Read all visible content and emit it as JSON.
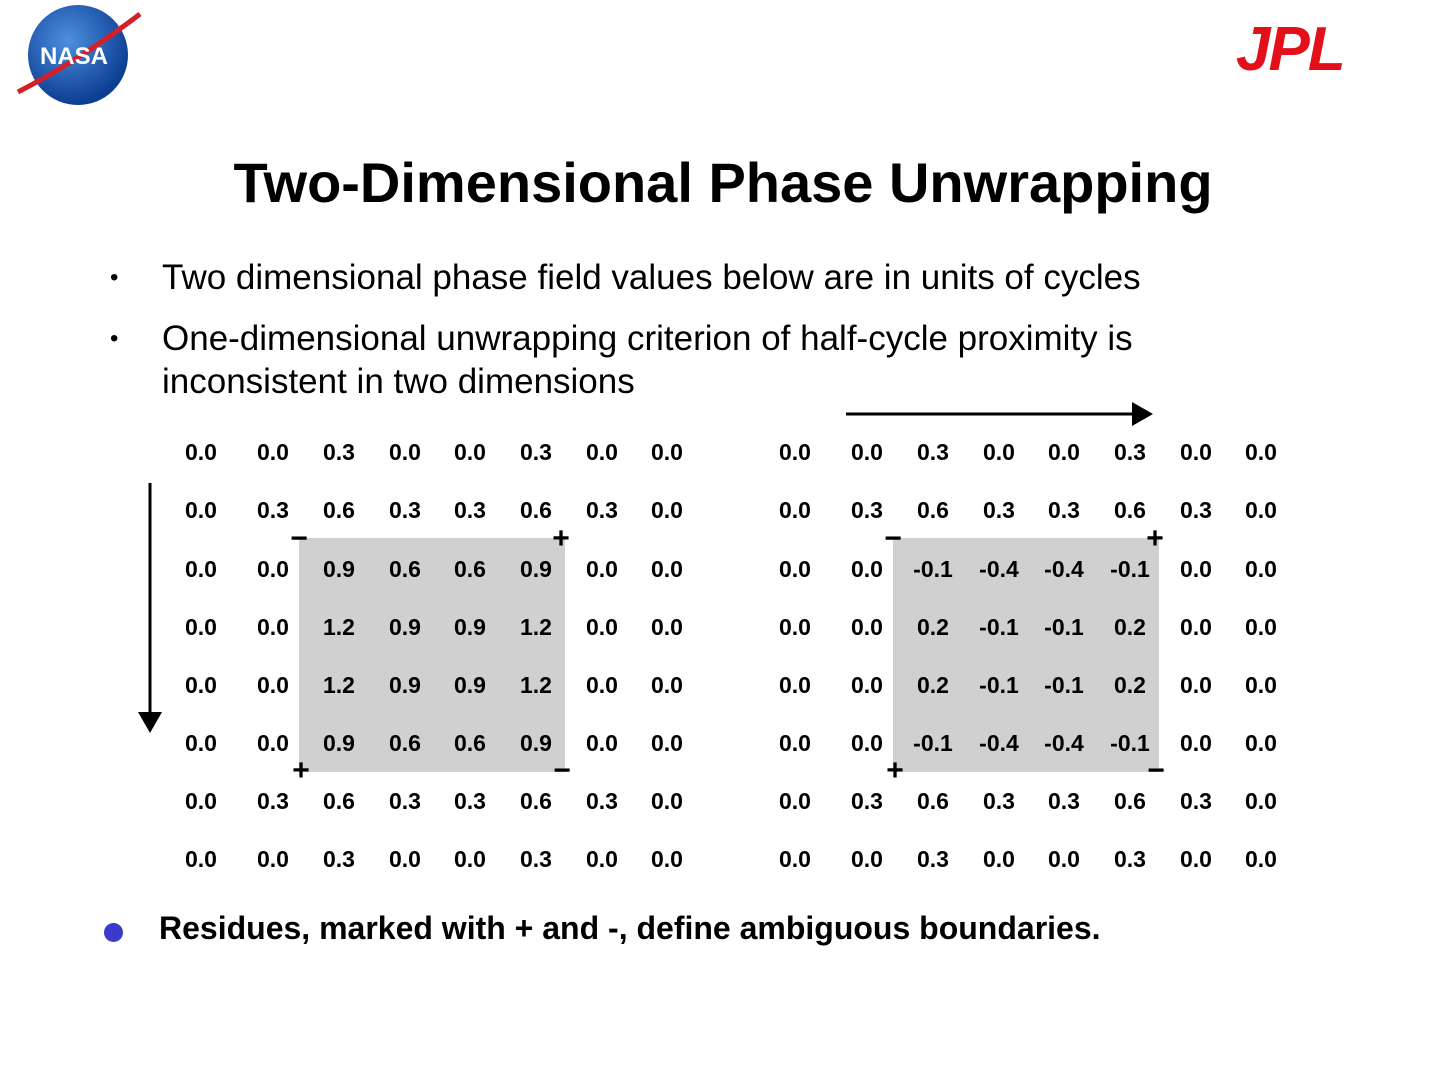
{
  "header": {
    "logos": {
      "nasa": "NASA",
      "jpl": "JPL"
    },
    "title": "Two-Dimensional Phase Unwrapping"
  },
  "bullets": [
    "Two dimensional phase field values below are in units of cycles",
    "One-dimensional unwrapping criterion of half-cycle proximity is inconsistent in two dimensions"
  ],
  "grids": [
    {
      "rows": [
        [
          "0.0",
          "0.0",
          "0.3",
          "0.0",
          "0.0",
          "0.3",
          "0.0",
          "0.0"
        ],
        [
          "0.0",
          "0.3",
          "0.6",
          "0.3",
          "0.3",
          "0.6",
          "0.3",
          "0.0"
        ],
        [
          "0.0",
          "0.0",
          "0.9",
          "0.6",
          "0.6",
          "0.9",
          "0.0",
          "0.0"
        ],
        [
          "0.0",
          "0.0",
          "1.2",
          "0.9",
          "0.9",
          "1.2",
          "0.0",
          "0.0"
        ],
        [
          "0.0",
          "0.0",
          "1.2",
          "0.9",
          "0.9",
          "1.2",
          "0.0",
          "0.0"
        ],
        [
          "0.0",
          "0.0",
          "0.9",
          "0.6",
          "0.6",
          "0.9",
          "0.0",
          "0.0"
        ],
        [
          "0.0",
          "0.3",
          "0.6",
          "0.3",
          "0.3",
          "0.6",
          "0.3",
          "0.0"
        ],
        [
          "0.0",
          "0.0",
          "0.3",
          "0.0",
          "0.0",
          "0.3",
          "0.0",
          "0.0"
        ]
      ],
      "residues": [
        "−",
        "+",
        "+",
        "−"
      ]
    },
    {
      "rows": [
        [
          "0.0",
          "0.0",
          "0.3",
          "0.0",
          "0.0",
          "0.3",
          "0.0",
          "0.0"
        ],
        [
          "0.0",
          "0.3",
          "0.6",
          "0.3",
          "0.3",
          "0.6",
          "0.3",
          "0.0"
        ],
        [
          "0.0",
          "0.0",
          "-0.1",
          "-0.4",
          "-0.4",
          "-0.1",
          "0.0",
          "0.0"
        ],
        [
          "0.0",
          "0.0",
          "0.2",
          "-0.1",
          "-0.1",
          "0.2",
          "0.0",
          "0.0"
        ],
        [
          "0.0",
          "0.0",
          "0.2",
          "-0.1",
          "-0.1",
          "0.2",
          "0.0",
          "0.0"
        ],
        [
          "0.0",
          "0.0",
          "-0.1",
          "-0.4",
          "-0.4",
          "-0.1",
          "0.0",
          "0.0"
        ],
        [
          "0.0",
          "0.3",
          "0.6",
          "0.3",
          "0.3",
          "0.6",
          "0.3",
          "0.0"
        ],
        [
          "0.0",
          "0.0",
          "0.3",
          "0.0",
          "0.0",
          "0.3",
          "0.0",
          "0.0"
        ]
      ],
      "residues": [
        "−",
        "+",
        "+",
        "−"
      ]
    }
  ],
  "footer": {
    "bullet": "Residues, marked with + and -, define ambiguous boundaries."
  }
}
